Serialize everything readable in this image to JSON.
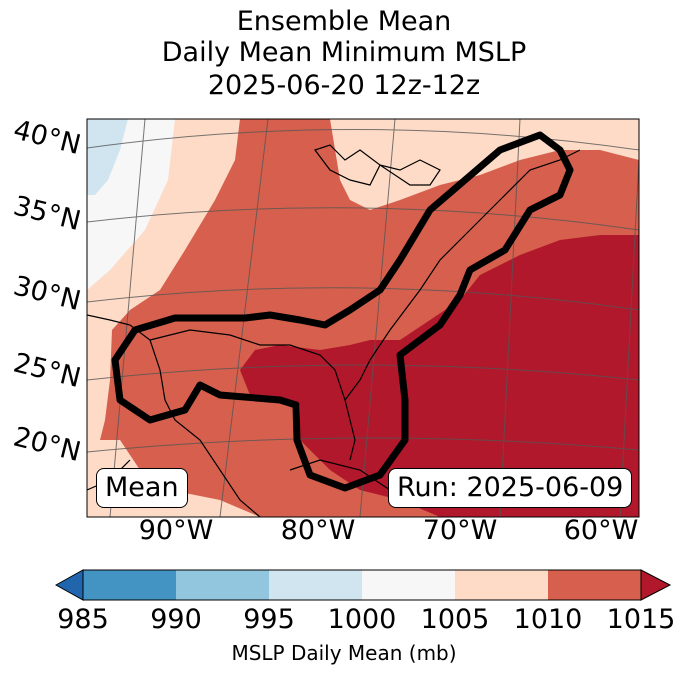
{
  "title": {
    "line1": "Ensemble Mean",
    "line2": "Daily Mean Minimum MSLP",
    "line3": "2025-06-20 12z-12z"
  },
  "map": {
    "region": "Eastern United States and Gulf of Mexico",
    "lat_labels": [
      "40°N",
      "35°N",
      "30°N",
      "25°N",
      "20°N"
    ],
    "lon_labels": [
      "90°W",
      "80°W",
      "70°W",
      "60°W"
    ],
    "contour_description": "thick black outline around region",
    "colors": {
      "c1000_1005": "#f7f7f7",
      "c995_1000": "#d1e5f0",
      "c1005_1010": "#fddbc7",
      "c1010_1015": "#d6604d",
      "c1015_plus": "#b2182b",
      "land_border": "#000000",
      "gridline": "#555555"
    }
  },
  "annotations": {
    "left_box": "Mean",
    "right_box": "Run: 2025-06-09"
  },
  "colorbar": {
    "ticks": [
      "985",
      "990",
      "995",
      "1000",
      "1005",
      "1010",
      "1015"
    ],
    "label": "MSLP Daily Mean (mb)",
    "colors": [
      "#2166ac",
      "#4393c3",
      "#92c5de",
      "#d1e5f0",
      "#f7f7f7",
      "#fddbc7",
      "#d6604d",
      "#b2182b"
    ]
  }
}
